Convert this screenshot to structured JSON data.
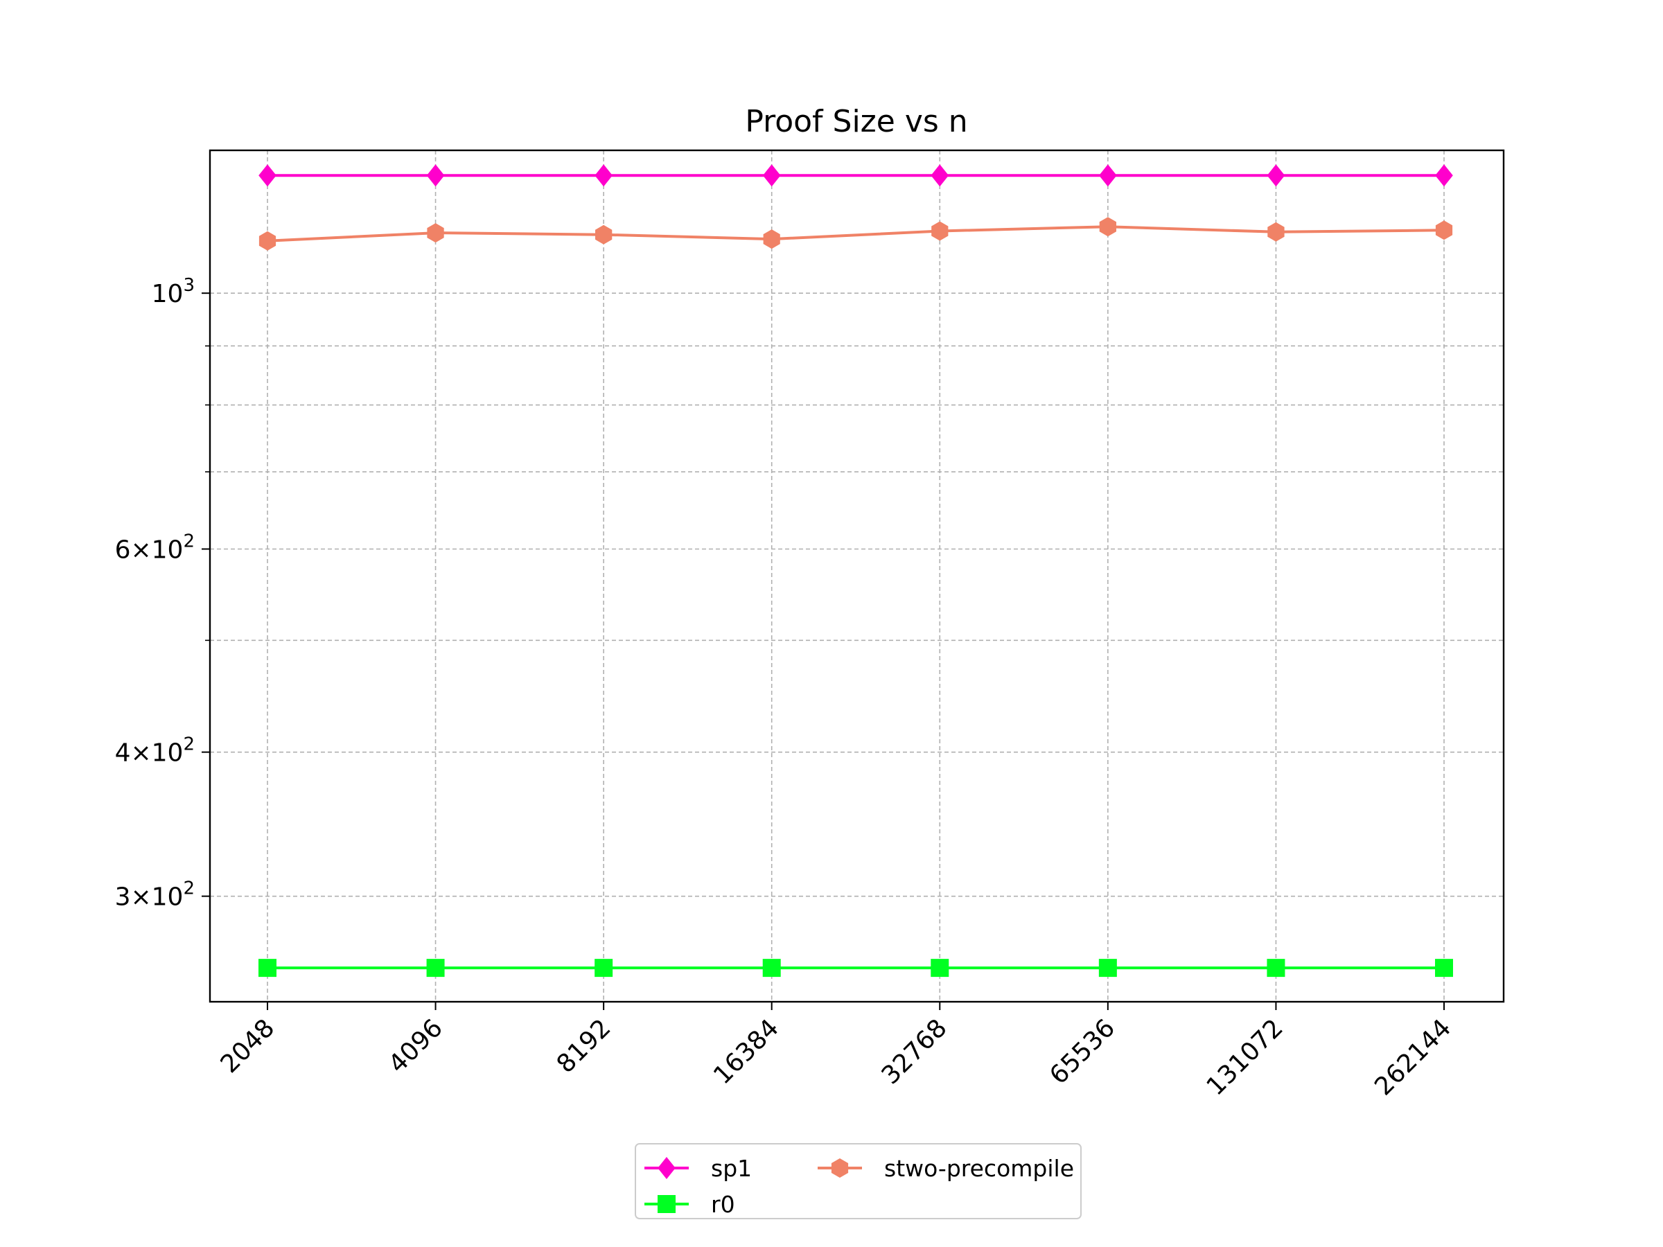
{
  "chart_data": {
    "type": "line",
    "title": "Proof Size vs n",
    "xlabel": "",
    "ylabel": "",
    "y_scale": "log",
    "ylim": [
      243,
      1330
    ],
    "grid": true,
    "legend_position": "bottom-center",
    "legend_columns": 2,
    "categories": [
      "2048",
      "4096",
      "8192",
      "16384",
      "32768",
      "65536",
      "131072",
      "262144"
    ],
    "y_major_ticks": [
      {
        "value": 300,
        "mantissa": "3",
        "base": "10",
        "exp": "2"
      },
      {
        "value": 400,
        "mantissa": "4",
        "base": "10",
        "exp": "2"
      },
      {
        "value": 600,
        "mantissa": "6",
        "base": "10",
        "exp": "2"
      },
      {
        "value": 1000,
        "mantissa": "",
        "base": "10",
        "exp": "3"
      }
    ],
    "y_minor_gridlines": [
      500,
      700,
      800,
      900
    ],
    "series": [
      {
        "name": "sp1",
        "color": "#ff00cc",
        "marker": "diamond",
        "values": [
          1265,
          1265,
          1265,
          1265,
          1265,
          1265,
          1265,
          1265
        ]
      },
      {
        "name": "stwo-precompile",
        "color": "#f08266",
        "marker": "hexagon",
        "values": [
          1110,
          1128,
          1124,
          1114,
          1132,
          1142,
          1130,
          1134
        ]
      },
      {
        "name": "r0",
        "color": "#00ff22",
        "marker": "square",
        "values": [
          260,
          260,
          260,
          260,
          260,
          260,
          260,
          260
        ]
      }
    ]
  }
}
